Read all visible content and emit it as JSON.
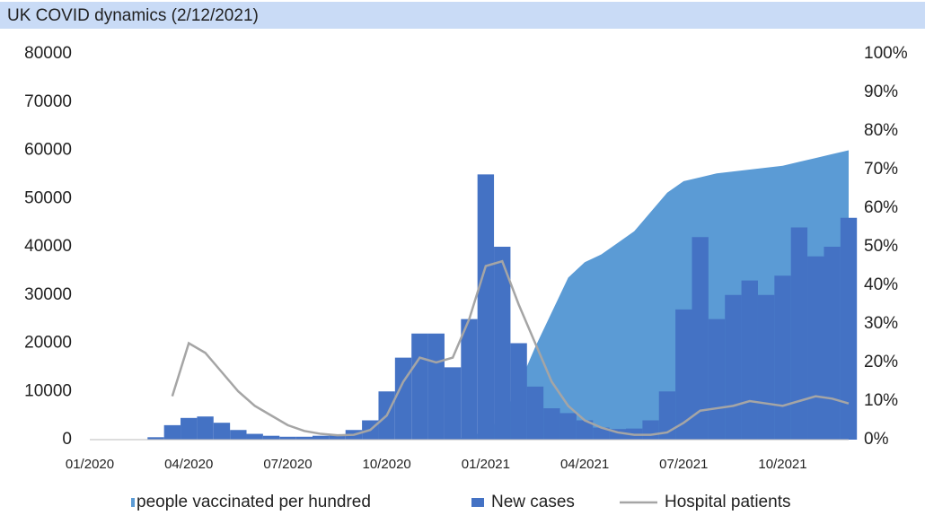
{
  "chart_data": {
    "type": "combo",
    "title": "UK COVID dynamics (2/12/2021)",
    "categories": [
      "01/2020",
      null,
      null,
      null,
      null,
      null,
      "04/2020",
      null,
      null,
      null,
      null,
      null,
      "07/2020",
      null,
      null,
      null,
      null,
      null,
      "10/2020",
      null,
      null,
      null,
      null,
      null,
      "01/2021",
      null,
      null,
      null,
      null,
      null,
      "04/2021",
      null,
      null,
      null,
      null,
      null,
      "07/2021",
      null,
      null,
      null,
      null,
      null,
      "10/2021",
      null,
      null,
      null,
      null
    ],
    "series": [
      {
        "name": "people vaccinated per hundred",
        "color": "#5b9bd5",
        "kind": "area",
        "axis": "y2",
        "values": [
          0,
          0,
          0,
          0,
          0,
          0,
          0,
          0,
          0,
          0,
          0,
          0,
          0,
          0,
          0,
          0,
          0,
          0,
          0,
          0,
          0,
          0,
          0,
          1,
          2,
          6,
          14,
          24,
          33,
          42,
          46,
          48,
          51,
          54,
          59,
          64,
          67,
          68,
          69,
          69.5,
          70,
          70.5,
          71,
          72,
          73,
          74,
          75
        ]
      },
      {
        "name": "New cases",
        "color": "#4472c4",
        "kind": "bar",
        "values": [
          0,
          0,
          0,
          0,
          500,
          3000,
          4500,
          4800,
          3500,
          2000,
          1200,
          800,
          600,
          600,
          800,
          1000,
          2000,
          4000,
          10000,
          17000,
          22000,
          22000,
          15000,
          25000,
          55000,
          40000,
          20000,
          11000,
          6500,
          5500,
          4000,
          2500,
          2200,
          2300,
          4000,
          10000,
          27000,
          42000,
          25000,
          30000,
          33000,
          30000,
          34000,
          44000,
          38000,
          40000,
          46000
        ]
      },
      {
        "name": "Hospital patients",
        "color": "#a5a5a5",
        "kind": "line",
        "values": [
          null,
          null,
          null,
          null,
          null,
          9000,
          20000,
          18000,
          14000,
          10000,
          7000,
          5000,
          3000,
          1800,
          1200,
          900,
          1000,
          2000,
          5000,
          12000,
          17000,
          16000,
          17000,
          25000,
          36000,
          37000,
          28000,
          20000,
          12000,
          7000,
          4000,
          2500,
          1500,
          1000,
          1000,
          1500,
          3500,
          6000,
          6500,
          7000,
          8000,
          7500,
          7000,
          8000,
          9000,
          8500,
          7500
        ]
      }
    ],
    "ylim": [
      0,
      80000
    ],
    "yticks": [
      0,
      10000,
      20000,
      30000,
      40000,
      50000,
      60000,
      70000,
      80000
    ],
    "y2lim": [
      0,
      100
    ],
    "y2ticks": [
      {
        "value": 0,
        "label": "0%"
      },
      {
        "value": 10,
        "label": "10%"
      },
      {
        "value": 20,
        "label": "20%"
      },
      {
        "value": 30,
        "label": "30%"
      },
      {
        "value": 40,
        "label": "40%"
      },
      {
        "value": 50,
        "label": "50%"
      },
      {
        "value": 60,
        "label": "60%"
      },
      {
        "value": 70,
        "label": "70%"
      },
      {
        "value": 80,
        "label": "80%"
      },
      {
        "value": 90,
        "label": "90%"
      },
      {
        "value": 100,
        "label": "100%"
      }
    ],
    "legend": "bottom"
  }
}
